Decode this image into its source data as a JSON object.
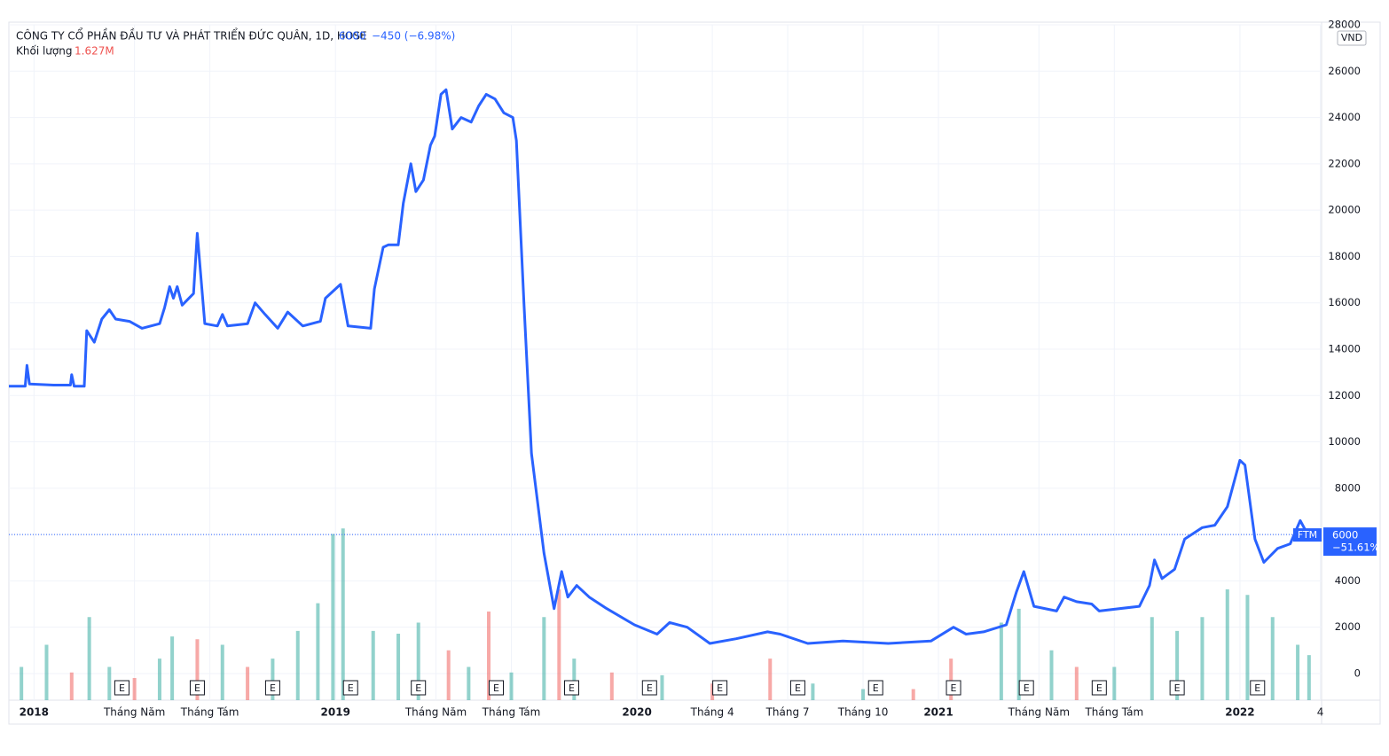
{
  "chart_data": {
    "type": "line",
    "title": "CÔNG TY CỔ PHẦN ĐẦU TƯ VÀ PHÁT TRIỂN ĐỨC QUÂN, 1D, HOSE",
    "last_value": 6000,
    "change_label": "−450 (−6.98%)",
    "volume_title": "Khối lượng",
    "volume_label": "1.627M",
    "currency": "VND",
    "symbol": "FTM",
    "change_total_label": "−51.61%",
    "grid": true,
    "xlim": [
      -1,
      51.25
    ],
    "ylim": [
      -1150,
      28000
    ],
    "yticks": [
      0,
      2000,
      4000,
      6000,
      8000,
      10000,
      12000,
      14000,
      16000,
      18000,
      20000,
      22000,
      24000,
      26000,
      28000
    ],
    "xticks": [
      {
        "value": 0,
        "label": "2018"
      },
      {
        "value": 4,
        "label": "Tháng Năm"
      },
      {
        "value": 7,
        "label": "Tháng Tám"
      },
      {
        "value": 12,
        "label": "2019"
      },
      {
        "value": 16,
        "label": "Tháng Năm"
      },
      {
        "value": 19,
        "label": "Tháng Tám"
      },
      {
        "value": 24,
        "label": "2020"
      },
      {
        "value": 27,
        "label": "Tháng 4"
      },
      {
        "value": 30,
        "label": "Tháng 7"
      },
      {
        "value": 33,
        "label": "Tháng 10"
      },
      {
        "value": 36,
        "label": "2021"
      },
      {
        "value": 40,
        "label": "Tháng Năm"
      },
      {
        "value": 43,
        "label": "Tháng Tám"
      },
      {
        "value": 48,
        "label": "2022"
      },
      {
        "value": 51.2,
        "label": "4"
      }
    ],
    "series": [
      {
        "name": "FTM",
        "color": "#2962ff",
        "x": [
          -1,
          -0.35,
          -0.28,
          -0.18,
          0.78,
          1.45,
          1.5,
          1.6,
          2.0,
          2.1,
          2.4,
          2.7,
          3.0,
          3.25,
          3.8,
          4.3,
          5.0,
          5.2,
          5.4,
          5.55,
          5.7,
          5.9,
          6.35,
          6.5,
          6.8,
          7.3,
          7.5,
          7.7,
          8.5,
          8.8,
          9.2,
          9.7,
          10.1,
          10.7,
          11.4,
          11.6,
          12.2,
          12.5,
          13.4,
          13.55,
          13.9,
          14.1,
          14.5,
          14.7,
          15.0,
          15.2,
          15.5,
          15.78,
          15.95,
          16.2,
          16.4,
          16.65,
          17.0,
          17.4,
          17.7,
          18.0,
          18.35,
          18.7,
          19.06,
          19.2,
          19.5,
          19.8,
          20.3,
          20.7,
          21.0,
          21.25,
          21.6,
          22.1,
          22.8,
          23.9,
          24.8,
          25.3,
          26.0,
          26.9,
          27.95,
          29.2,
          29.7,
          30.8,
          32.2,
          34.0,
          35.7,
          36.6,
          37.1,
          37.8,
          38.7,
          39.1,
          39.4,
          39.8,
          40.7,
          41.0,
          41.5,
          42.1,
          42.4,
          44.0,
          44.4,
          44.6,
          44.9,
          45.4,
          45.8,
          46.5,
          47.0,
          47.5,
          48.0,
          48.2,
          48.6,
          48.95,
          49.5,
          50.0,
          50.4,
          50.7
        ],
        "values": [
          12400,
          12400,
          13300,
          12500,
          12450,
          12450,
          12900,
          12400,
          12400,
          14800,
          14300,
          15300,
          15700,
          15300,
          15200,
          14900,
          15100,
          15800,
          16700,
          16200,
          16700,
          15900,
          16400,
          19000,
          15100,
          15000,
          15500,
          15000,
          15100,
          16000,
          15500,
          14900,
          15600,
          15000,
          15200,
          16200,
          16800,
          15000,
          14900,
          16600,
          18400,
          18500,
          18500,
          20300,
          22000,
          20800,
          21300,
          22800,
          23200,
          25000,
          25200,
          23500,
          24000,
          23800,
          24500,
          25000,
          24800,
          24200,
          24000,
          23000,
          16000,
          9500,
          5200,
          2800,
          4400,
          3300,
          3800,
          3300,
          2800,
          2100,
          1700,
          2200,
          2000,
          1300,
          1500,
          1800,
          1700,
          1300,
          1400,
          1300,
          1400,
          2000,
          1700,
          1800,
          2100,
          3500,
          4400,
          2900,
          2700,
          3300,
          3100,
          3000,
          2700,
          2900,
          3800,
          4900,
          4100,
          4500,
          5800,
          6300,
          6400,
          7200,
          9200,
          9000,
          5800,
          4800,
          5400,
          5600,
          6600,
          6000
        ]
      }
    ],
    "volume": {
      "ylim": [
        0,
        8
      ],
      "up_color": "#26a69a",
      "down_color": "#ef5350",
      "x": [
        -0.5,
        0.5,
        1.5,
        2.2,
        3,
        4,
        5,
        5.5,
        6.5,
        7.5,
        8.5,
        9.5,
        10.5,
        11.3,
        11.9,
        12.3,
        13.5,
        14.5,
        15.3,
        16.5,
        17.3,
        18.1,
        19,
        20.3,
        20.9,
        21.5,
        23,
        25,
        27,
        29.3,
        31,
        33,
        35,
        36.5,
        38.5,
        39.2,
        40.5,
        41.5,
        43,
        44.5,
        45.5,
        46.5,
        47.5,
        48.3,
        49.3,
        50.3,
        50.75
      ],
      "values": [
        1.2,
        2.0,
        1.0,
        3.0,
        1.2,
        0.8,
        1.5,
        2.3,
        2.2,
        2.0,
        1.2,
        1.5,
        2.5,
        3.5,
        6.0,
        6.2,
        2.5,
        2.4,
        2.8,
        1.8,
        1.2,
        3.2,
        1.0,
        3.0,
        4.0,
        1.5,
        1.0,
        0.9,
        0.6,
        1.5,
        0.6,
        0.4,
        0.4,
        1.5,
        2.8,
        3.3,
        1.8,
        1.2,
        1.2,
        3.0,
        2.5,
        3.0,
        4.0,
        3.8,
        3.0,
        2.0,
        1.627
      ],
      "up": [
        true,
        true,
        false,
        true,
        true,
        false,
        true,
        true,
        false,
        true,
        false,
        true,
        true,
        true,
        true,
        true,
        true,
        true,
        true,
        false,
        true,
        false,
        true,
        true,
        false,
        true,
        false,
        true,
        false,
        false,
        true,
        true,
        false,
        false,
        true,
        true,
        true,
        false,
        true,
        true,
        true,
        true,
        true,
        true,
        true,
        true,
        true
      ]
    },
    "events": {
      "label": "E",
      "x": [
        3.5,
        6.5,
        9.5,
        12.6,
        15.3,
        18.4,
        21.4,
        24.5,
        27.3,
        30.4,
        33.5,
        36.6,
        39.5,
        42.4,
        45.5,
        48.7
      ]
    }
  }
}
